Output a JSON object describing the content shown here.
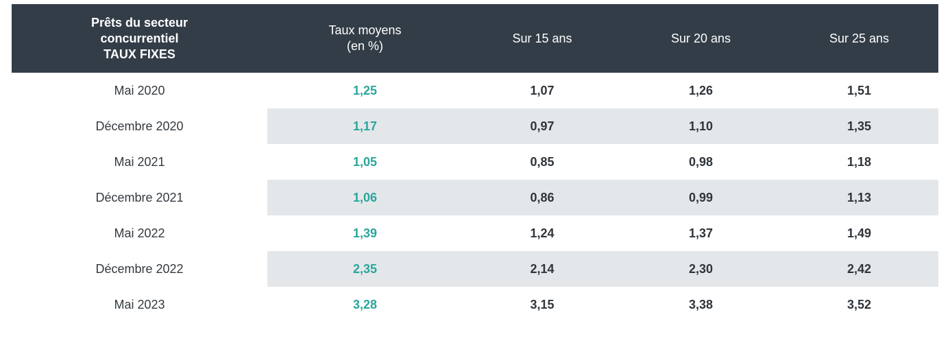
{
  "header": {
    "first_line1": "Prêts du secteur",
    "first_line2": "concurrentiel",
    "first_line3": "TAUX FIXES",
    "rate_line1": "Taux moyens",
    "rate_line2": "(en %)",
    "col15": "Sur 15 ans",
    "col20": "Sur 20 ans",
    "col25": "Sur 25 ans"
  },
  "rows": [
    {
      "label": "Mai 2020",
      "rate": "1,25",
      "y15": "1,07",
      "y20": "1,26",
      "y25": "1,51"
    },
    {
      "label": "Décembre 2020",
      "rate": "1,17",
      "y15": "0,97",
      "y20": "1,10",
      "y25": "1,35"
    },
    {
      "label": "Mai 2021",
      "rate": "1,05",
      "y15": "0,85",
      "y20": "0,98",
      "y25": "1,18"
    },
    {
      "label": "Décembre 2021",
      "rate": "1,06",
      "y15": "0,86",
      "y20": "0,99",
      "y25": "1,13"
    },
    {
      "label": "Mai 2022",
      "rate": "1,39",
      "y15": "1,24",
      "y20": "1,37",
      "y25": "1,49"
    },
    {
      "label": "Décembre 2022",
      "rate": "2,35",
      "y15": "2,14",
      "y20": "2,30",
      "y25": "2,42"
    },
    {
      "label": "Mai 2023",
      "rate": "3,28",
      "y15": "3,15",
      "y20": "3,38",
      "y25": "3,52"
    }
  ],
  "colors": {
    "header_bg": "#333d47",
    "rate_accent": "#2aa69b",
    "row_shade": "#e3e7e9"
  }
}
